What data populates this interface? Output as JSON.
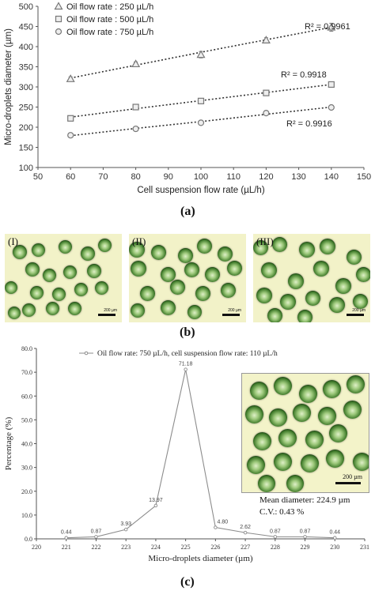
{
  "panels": {
    "a": "(a)",
    "b": "(b)",
    "c": "(c)",
    "b_sub": [
      "(I)",
      "(II)",
      "(III)"
    ]
  },
  "micrographs": {
    "scale_label": "200 µm"
  },
  "inset": {
    "scale_label": "200 µm",
    "mean_label": "Mean diameter: 224.9 µm",
    "cv_label": "C.V.: 0.43 %"
  },
  "chart_data": [
    {
      "type": "scatter",
      "xlabel": "Cell suspension flow rate (µL/h)",
      "ylabel": "Micro-droplets diameter (µm)",
      "xlim": [
        50,
        150
      ],
      "ylim": [
        100,
        500
      ],
      "xticks": [
        "50",
        "60",
        "70",
        "80",
        "90",
        "100",
        "110",
        "120",
        "130",
        "140",
        "150"
      ],
      "yticks": [
        "100",
        "150",
        "200",
        "250",
        "300",
        "350",
        "400",
        "450",
        "500"
      ],
      "grid": false,
      "legend_position": "top-left",
      "x": [
        60,
        80,
        100,
        120,
        140
      ],
      "series": [
        {
          "name": "Oil flow rate : 250 µL/h",
          "marker": "triangle",
          "values": [
            320,
            357,
            380,
            416,
            448
          ],
          "errors": [
            5,
            5,
            8,
            6,
            10
          ],
          "r2": "R² = 0.9961",
          "trend": [
            322,
            354,
            386,
            417,
            448
          ]
        },
        {
          "name": "Oil flow rate : 500 µL/h",
          "marker": "square",
          "values": [
            222,
            250,
            265,
            285,
            306
          ],
          "errors": [
            2,
            3,
            2,
            2,
            3
          ],
          "r2": "R² = 0.9918",
          "trend": [
            225,
            246,
            266,
            286,
            306
          ]
        },
        {
          "name": "Oil flow rate : 750 µL/h",
          "marker": "circle",
          "values": [
            180,
            196,
            211,
            235,
            249
          ],
          "errors": [
            2,
            2,
            2,
            2,
            2
          ],
          "r2": "R² = 0.9916",
          "trend": [
            179,
            197,
            214,
            232,
            250
          ]
        }
      ],
      "colors": {
        "markers": "#777777",
        "trend": "#333333"
      }
    },
    {
      "type": "line",
      "xlabel": "Micro-droplets diameter (µm)",
      "ylabel": "Percentage (%)",
      "xlim": [
        220,
        231
      ],
      "ylim": [
        0,
        80
      ],
      "xticks": [
        "220",
        "221",
        "222",
        "223",
        "224",
        "225",
        "226",
        "227",
        "228",
        "229",
        "230",
        "231"
      ],
      "yticks": [
        "0.0",
        "10.0",
        "20.0",
        "30.0",
        "40.0",
        "50.0",
        "60.0",
        "70.0",
        "80.0"
      ],
      "legend_position": "top",
      "x": [
        221,
        222,
        223,
        224,
        225,
        226,
        227,
        228,
        229,
        230
      ],
      "series": [
        {
          "name": "Oil flow rate: 750 µL/h, cell suspension flow rate: 110 µL/h",
          "values": [
            0.44,
            0.87,
            3.93,
            13.97,
            71.18,
            4.8,
            2.62,
            0.87,
            0.87,
            0.44
          ],
          "labels": [
            "0.44",
            "0.87",
            "3.93",
            "13.97",
            "71.18",
            "4.80",
            "2.62",
            "0.87",
            "0.87",
            "0.44"
          ]
        }
      ],
      "colors": {
        "line": "#8c8c8c"
      }
    }
  ]
}
